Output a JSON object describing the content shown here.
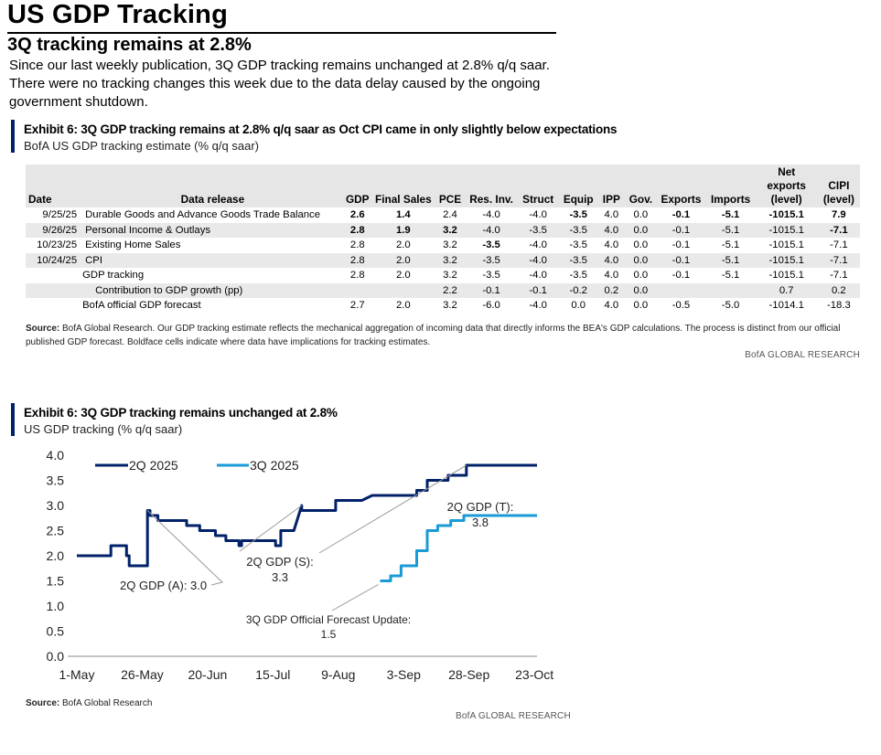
{
  "header": {
    "title": "US GDP Tracking",
    "subtitle": "3Q tracking remains at 2.8%",
    "intro": "Since our last weekly publication, 3Q GDP tracking remains unchanged at 2.8% q/q saar. There were no tracking changes this week due to the data delay caused by the ongoing government shutdown."
  },
  "table_exhibit": {
    "title": "Exhibit 6: 3Q GDP tracking remains at 2.8% q/q saar as Oct CPI came in only slightly below expectations",
    "subtitle": "BofA US GDP tracking estimate (% q/q saar)",
    "header_top": {
      "net": "Net",
      "cipi": "CIPI"
    },
    "columns": [
      "Date",
      "Data release",
      "GDP",
      "Final Sales",
      "PCE",
      "Res. Inv.",
      "Struct",
      "Equip",
      "IPP",
      "Gov.",
      "Exports",
      "Imports",
      "exports (level)",
      "(level)"
    ],
    "rows": [
      {
        "cells": [
          "9/25/25",
          "Durable Goods and Advance Goods Trade Balance",
          "2.6",
          "1.4",
          "2.4",
          "-4.0",
          "-4.0",
          "-3.5",
          "4.0",
          "0.0",
          "-0.1",
          "-5.1",
          "-1015.1",
          "7.9"
        ],
        "bold": [
          2,
          3,
          7,
          10,
          11,
          12,
          13
        ]
      },
      {
        "cells": [
          "9/26/25",
          "Personal Income & Outlays",
          "2.8",
          "1.9",
          "3.2",
          "-4.0",
          "-3.5",
          "-3.5",
          "4.0",
          "0.0",
          "-0.1",
          "-5.1",
          "-1015.1",
          "-7.1"
        ],
        "bold": [
          2,
          3,
          4,
          13
        ]
      },
      {
        "cells": [
          "10/23/25",
          "Existing Home Sales",
          "2.8",
          "2.0",
          "3.2",
          "-3.5",
          "-4.0",
          "-3.5",
          "4.0",
          "0.0",
          "-0.1",
          "-5.1",
          "-1015.1",
          "-7.1"
        ],
        "bold": [
          5
        ]
      },
      {
        "cells": [
          "10/24/25",
          "CPI",
          "2.8",
          "2.0",
          "3.2",
          "-3.5",
          "-4.0",
          "-3.5",
          "4.0",
          "0.0",
          "-0.1",
          "-5.1",
          "-1015.1",
          "-7.1"
        ],
        "bold": []
      },
      {
        "cells": [
          "",
          "GDP tracking",
          "2.8",
          "2.0",
          "3.2",
          "-3.5",
          "-4.0",
          "-3.5",
          "4.0",
          "0.0",
          "-0.1",
          "-5.1",
          "-1015.1",
          "-7.1"
        ],
        "bold": []
      },
      {
        "cells": [
          "",
          "Contribution to GDP growth (pp)",
          "",
          "",
          "2.2",
          "-0.1",
          "-0.1",
          "-0.2",
          "0.2",
          "0.0",
          "",
          "",
          "0.7",
          "0.2"
        ],
        "bold": [],
        "indent": true
      },
      {
        "cells": [
          "",
          "BofA official GDP forecast",
          "2.7",
          "2.0",
          "3.2",
          "-6.0",
          "-4.0",
          "0.0",
          "4.0",
          "0.0",
          "-0.5",
          "-5.0",
          "-1014.1",
          "-18.3"
        ],
        "bold": []
      }
    ],
    "source_label": "Source:",
    "source_text": "BofA Global Research. Our GDP tracking estimate reflects the mechanical aggregation of incoming data that directly informs the BEA's GDP calculations. The process is distinct from our official published GDP forecast. Boldface cells indicate where data have implications for tracking estimates.",
    "brand": "BofA GLOBAL RESEARCH"
  },
  "chart_exhibit": {
    "title": "Exhibit 6: 3Q GDP tracking remains unchanged at 2.8%",
    "subtitle": "US GDP tracking (% q/q saar)",
    "source_label": "Source:",
    "source_text": "BofA Global Research",
    "brand": "BofA GLOBAL RESEARCH"
  },
  "chart_data": {
    "type": "line",
    "title": "US GDP tracking (% q/q saar)",
    "xlabel": "",
    "ylabel": "",
    "ylim": [
      0,
      4
    ],
    "yticks": [
      "0.0",
      "0.5",
      "1.0",
      "1.5",
      "2.0",
      "2.5",
      "3.0",
      "3.5",
      "4.0"
    ],
    "xlim_days": [
      0,
      176
    ],
    "xticks": [
      {
        "label": "1-May",
        "day": 0
      },
      {
        "label": "26-May",
        "day": 25
      },
      {
        "label": "20-Jun",
        "day": 50
      },
      {
        "label": "15-Jul",
        "day": 75
      },
      {
        "label": "9-Aug",
        "day": 100
      },
      {
        "label": "3-Sep",
        "day": 125
      },
      {
        "label": "28-Sep",
        "day": 150
      },
      {
        "label": "23-Oct",
        "day": 175
      }
    ],
    "colors": {
      "s2q": "#012169",
      "s3q": "#1a9ad6",
      "annot": "#9a9a9a"
    },
    "series": [
      {
        "name": "2Q 2025",
        "color": "#012169",
        "points": [
          [
            0,
            2.0
          ],
          [
            13,
            2.0
          ],
          [
            13,
            2.2
          ],
          [
            19,
            2.2
          ],
          [
            19,
            2.0
          ],
          [
            20,
            2.0
          ],
          [
            20,
            1.8
          ],
          [
            27,
            1.8
          ],
          [
            27,
            2.9
          ],
          [
            28,
            2.9
          ],
          [
            28,
            2.8
          ],
          [
            31,
            2.8
          ],
          [
            31,
            2.7
          ],
          [
            42,
            2.7
          ],
          [
            42,
            2.6
          ],
          [
            47,
            2.6
          ],
          [
            47,
            2.5
          ],
          [
            53,
            2.5
          ],
          [
            53,
            2.4
          ],
          [
            57,
            2.4
          ],
          [
            57,
            2.3
          ],
          [
            62,
            2.3
          ],
          [
            62,
            2.2
          ],
          [
            63,
            2.2
          ],
          [
            63,
            2.3
          ],
          [
            76,
            2.3
          ],
          [
            76,
            2.2
          ],
          [
            78,
            2.2
          ],
          [
            78,
            2.5
          ],
          [
            83,
            2.5
          ],
          [
            86,
            3.0
          ],
          [
            86,
            2.9
          ],
          [
            99,
            2.9
          ],
          [
            99,
            3.1
          ],
          [
            109,
            3.1
          ],
          [
            113,
            3.2
          ],
          [
            130,
            3.2
          ],
          [
            130,
            3.3
          ],
          [
            134,
            3.3
          ],
          [
            134,
            3.5
          ],
          [
            142,
            3.5
          ],
          [
            142,
            3.6
          ],
          [
            149,
            3.6
          ],
          [
            149,
            3.8
          ],
          [
            176,
            3.8
          ]
        ]
      },
      {
        "name": "3Q 2025",
        "color": "#1a9ad6",
        "points": [
          [
            116,
            1.5
          ],
          [
            120,
            1.5
          ],
          [
            120,
            1.6
          ],
          [
            124,
            1.6
          ],
          [
            124,
            1.8
          ],
          [
            130,
            1.8
          ],
          [
            130,
            2.1
          ],
          [
            134,
            2.1
          ],
          [
            134,
            2.5
          ],
          [
            138,
            2.5
          ],
          [
            138,
            2.6
          ],
          [
            143,
            2.6
          ],
          [
            143,
            2.7
          ],
          [
            148,
            2.7
          ],
          [
            148,
            2.8
          ],
          [
            176,
            2.8
          ]
        ]
      }
    ],
    "annotations": [
      {
        "text": "2Q GDP (A): 3.0",
        "lines": [
          "2Q GDP (A): 3.0"
        ],
        "point": [
          27,
          2.9
        ]
      },
      {
        "text": "2Q GDP (S): 3.3",
        "lines": [
          "2Q GDP (S):",
          "3.3"
        ],
        "point": [
          86,
          3.0
        ]
      },
      {
        "text": "2Q GDP (T): 3.8",
        "lines": [
          "2Q GDP (T):",
          "3.8"
        ],
        "point": [
          149,
          3.8
        ]
      },
      {
        "text": "3Q GDP Official Forecast Update: 1.5",
        "lines": [
          "3Q GDP Official Forecast Update:",
          "1.5"
        ],
        "point": [
          116,
          1.5
        ]
      }
    ]
  }
}
